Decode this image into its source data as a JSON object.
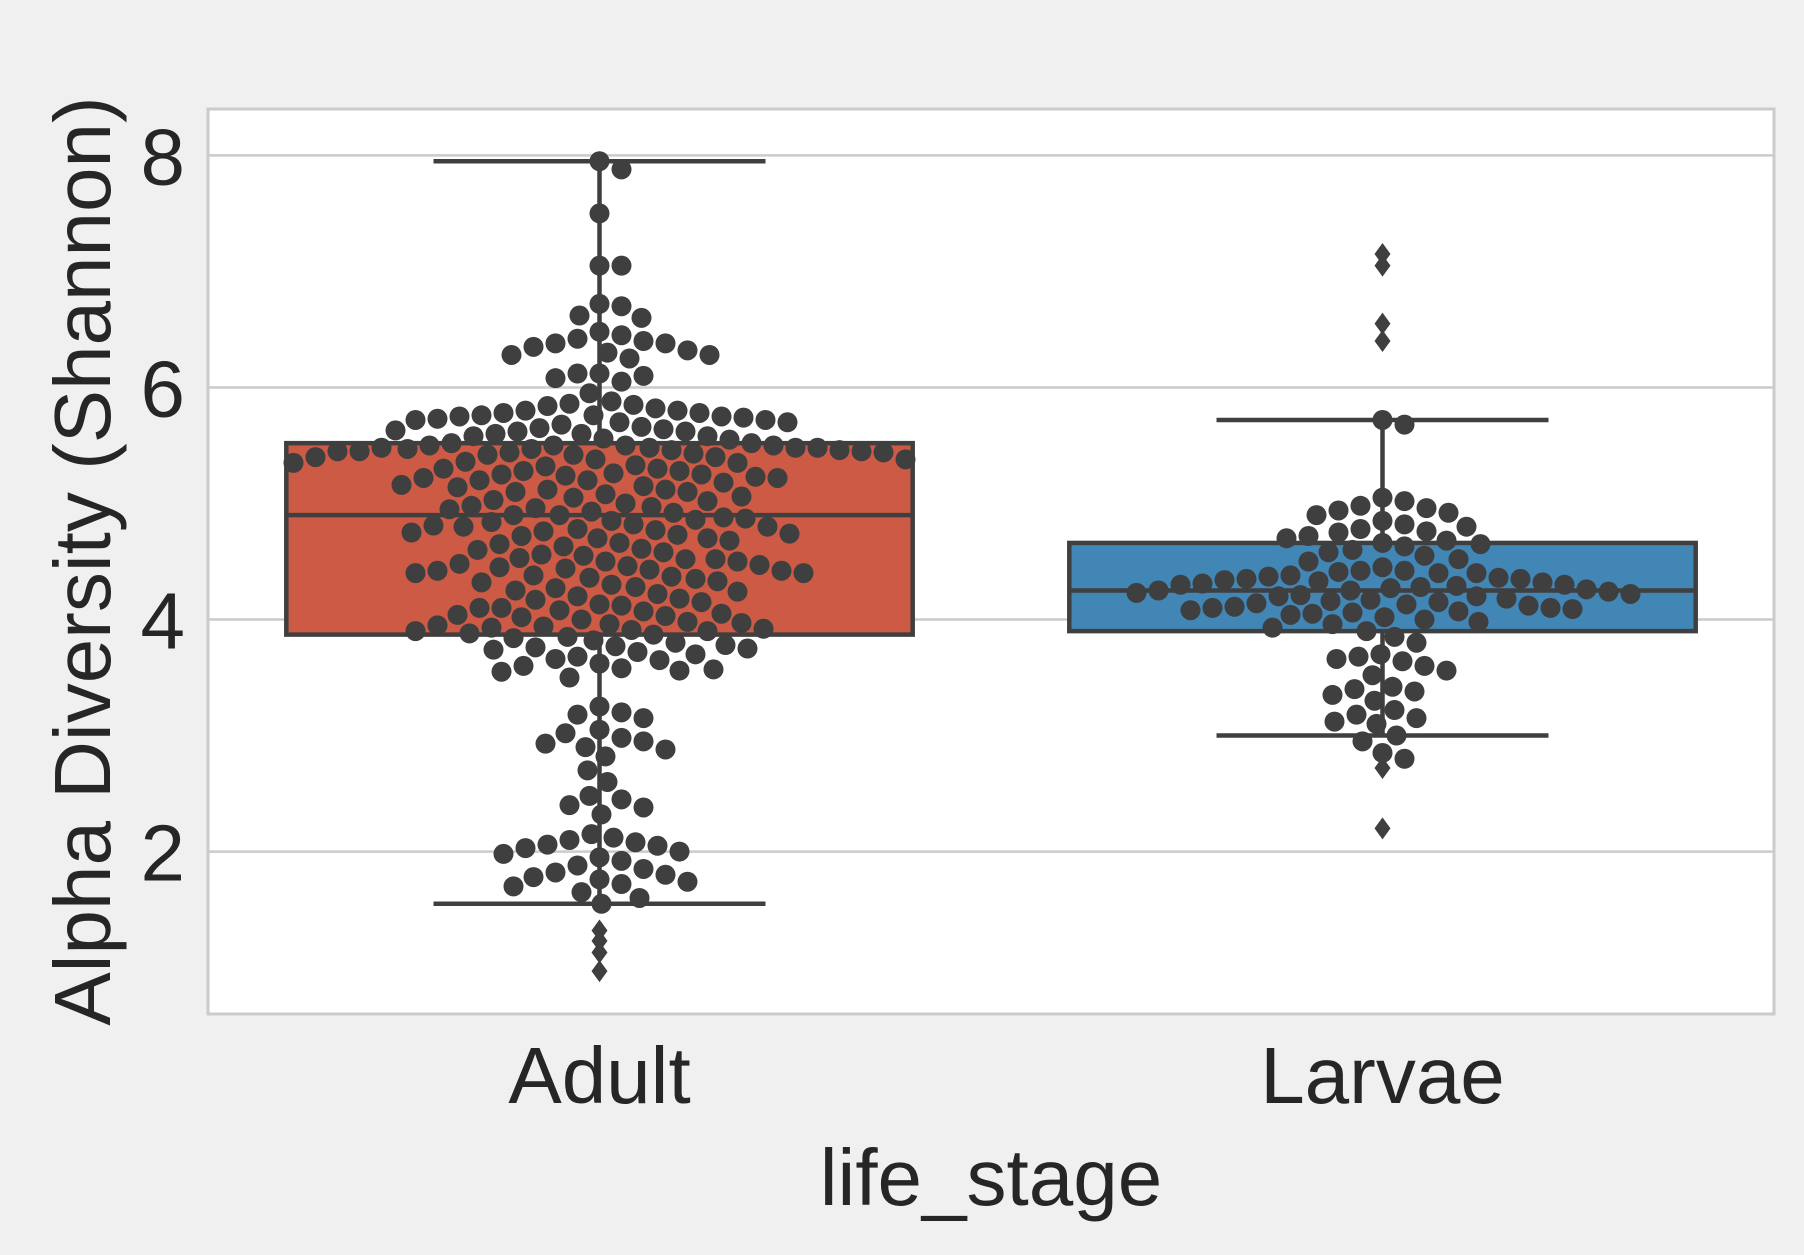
{
  "colors": {
    "background": "#f0f0f0",
    "plot_area": "#ffffff",
    "grid": "#cbcbcb",
    "frame": "#cbcbcb",
    "box_edge": "#3f3f3f",
    "point": "#3f3f3f",
    "text": "#262626"
  },
  "chart_data": {
    "type": "box",
    "overlay": "swarm",
    "xlabel": "life_stage",
    "ylabel": "Alpha Diversity (Shannon)",
    "categories": [
      "Adult",
      "Larvae"
    ],
    "ylim": [
      0.6,
      8.4
    ],
    "yticks": [
      2,
      4,
      6,
      8
    ],
    "grid": "horizontal",
    "boxes": [
      {
        "name": "Adult",
        "color": "#cc5a45",
        "q1": 3.87,
        "median": 4.9,
        "q3": 5.52,
        "whisker_low": 1.55,
        "whisker_high": 7.95
      },
      {
        "name": "Larvae",
        "color": "#4186b5",
        "q1": 3.9,
        "median": 4.25,
        "q3": 4.66,
        "whisker_low": 3.0,
        "whisker_high": 5.72
      }
    ],
    "outliers": [
      {
        "category": "Adult",
        "values": [
          1.32,
          1.23,
          1.13,
          0.97
        ]
      },
      {
        "category": "Larvae",
        "values": [
          7.15,
          7.05,
          6.55,
          6.4,
          2.72,
          2.2
        ]
      }
    ],
    "points": [
      {
        "category": "Adult",
        "values": [
          7.95,
          7.88,
          7.5,
          7.05,
          7.05,
          6.72,
          6.7,
          6.62,
          6.6,
          6.48,
          6.45,
          6.42,
          6.4,
          6.38,
          6.38,
          6.35,
          6.32,
          6.3,
          6.28,
          6.28,
          6.25,
          6.12,
          6.12,
          6.1,
          6.08,
          6.05,
          5.95,
          5.88,
          5.86,
          5.85,
          5.84,
          5.82,
          5.8,
          5.8,
          5.78,
          5.78,
          5.76,
          5.76,
          5.75,
          5.75,
          5.74,
          5.73,
          5.72,
          5.72,
          5.7,
          5.7,
          5.68,
          5.66,
          5.65,
          5.64,
          5.63,
          5.62,
          5.62,
          5.6,
          5.6,
          5.58,
          5.58,
          5.56,
          5.55,
          5.52,
          5.52,
          5.5,
          5.5,
          5.5,
          5.5,
          5.48,
          5.48,
          5.48,
          5.48,
          5.47,
          5.47,
          5.46,
          5.46,
          5.45,
          5.45,
          5.45,
          5.44,
          5.44,
          5.43,
          5.42,
          5.42,
          5.4,
          5.4,
          5.38,
          5.38,
          5.36,
          5.35,
          5.35,
          5.33,
          5.32,
          5.3,
          5.3,
          5.28,
          5.28,
          5.26,
          5.25,
          5.25,
          5.24,
          5.23,
          5.22,
          5.22,
          5.2,
          5.2,
          5.18,
          5.16,
          5.15,
          5.14,
          5.12,
          5.12,
          5.1,
          5.1,
          5.08,
          5.06,
          5.05,
          5.03,
          5.02,
          5.0,
          4.98,
          4.97,
          4.96,
          4.95,
          4.93,
          4.92,
          4.9,
          4.9,
          4.88,
          4.87,
          4.86,
          4.85,
          4.84,
          4.82,
          4.81,
          4.8,
          4.8,
          4.78,
          4.77,
          4.76,
          4.75,
          4.74,
          4.73,
          4.72,
          4.7,
          4.7,
          4.68,
          4.66,
          4.65,
          4.63,
          4.61,
          4.6,
          4.58,
          4.56,
          4.55,
          4.53,
          4.52,
          4.52,
          4.5,
          4.5,
          4.48,
          4.47,
          4.46,
          4.45,
          4.44,
          4.43,
          4.42,
          4.42,
          4.4,
          4.4,
          4.38,
          4.37,
          4.36,
          4.35,
          4.33,
          4.32,
          4.3,
          4.28,
          4.27,
          4.25,
          4.24,
          4.22,
          4.2,
          4.18,
          4.17,
          4.15,
          4.13,
          4.12,
          4.1,
          4.1,
          4.08,
          4.07,
          4.05,
          4.04,
          4.03,
          4.02,
          4.0,
          3.98,
          3.97,
          3.96,
          3.95,
          3.94,
          3.93,
          3.92,
          3.91,
          3.9,
          3.9,
          3.88,
          3.87,
          3.85,
          3.84,
          3.82,
          3.8,
          3.78,
          3.77,
          3.76,
          3.75,
          3.74,
          3.72,
          3.7,
          3.68,
          3.66,
          3.65,
          3.62,
          3.6,
          3.58,
          3.57,
          3.56,
          3.55,
          3.5,
          3.25,
          3.2,
          3.18,
          3.15,
          3.05,
          3.02,
          2.98,
          2.95,
          2.93,
          2.9,
          2.88,
          2.82,
          2.7,
          2.6,
          2.48,
          2.45,
          2.4,
          2.38,
          2.32,
          2.15,
          2.12,
          2.1,
          2.08,
          2.06,
          2.05,
          2.03,
          2.0,
          1.98,
          1.95,
          1.92,
          1.88,
          1.85,
          1.82,
          1.8,
          1.78,
          1.76,
          1.74,
          1.72,
          1.7,
          1.65,
          1.6,
          1.55
        ]
      },
      {
        "category": "Larvae",
        "values": [
          5.72,
          5.68,
          5.05,
          5.02,
          4.98,
          4.96,
          4.94,
          4.92,
          4.9,
          4.85,
          4.82,
          4.8,
          4.78,
          4.76,
          4.75,
          4.72,
          4.7,
          4.68,
          4.66,
          4.65,
          4.63,
          4.6,
          4.58,
          4.55,
          4.52,
          4.5,
          4.45,
          4.42,
          4.42,
          4.41,
          4.4,
          4.4,
          4.38,
          4.37,
          4.36,
          4.35,
          4.35,
          4.34,
          4.33,
          4.32,
          4.31,
          4.3,
          4.3,
          4.29,
          4.28,
          4.27,
          4.26,
          4.25,
          4.25,
          4.24,
          4.23,
          4.22,
          4.21,
          4.2,
          4.2,
          4.18,
          4.17,
          4.16,
          4.15,
          4.14,
          4.13,
          4.12,
          4.11,
          4.1,
          4.1,
          4.09,
          4.08,
          4.07,
          4.06,
          4.05,
          4.04,
          4.02,
          4.0,
          3.98,
          3.96,
          3.93,
          3.9,
          3.85,
          3.8,
          3.7,
          3.68,
          3.66,
          3.64,
          3.6,
          3.56,
          3.52,
          3.42,
          3.4,
          3.38,
          3.35,
          3.3,
          3.22,
          3.18,
          3.15,
          3.12,
          3.1,
          3.0,
          2.95,
          2.85,
          2.8
        ]
      }
    ]
  }
}
